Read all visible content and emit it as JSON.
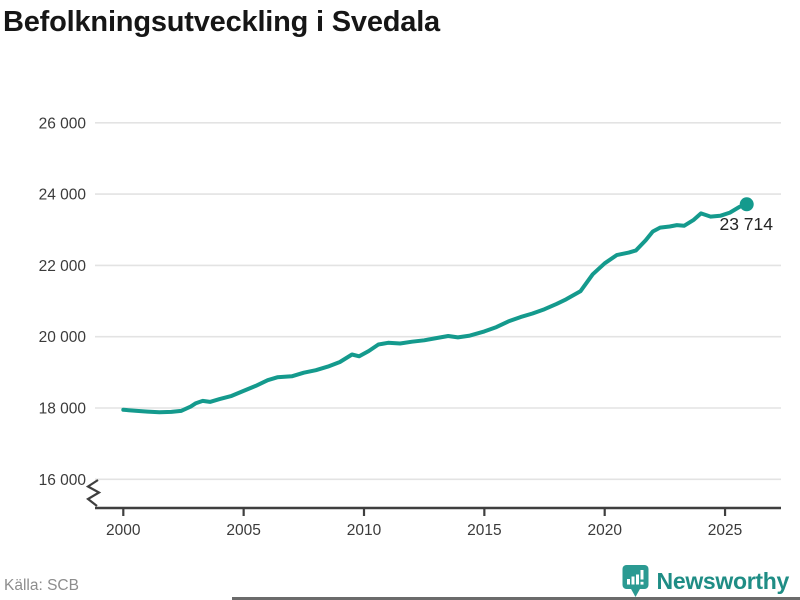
{
  "title": "Befolkningsutveckling i Svedala",
  "source": "Källa: SCB",
  "branding": {
    "name": "Newsworthy",
    "icon": "bar-chart-speech-bubble-icon"
  },
  "end_label": "23 714",
  "colors": {
    "line": "#149a8d",
    "dot": "#149a8d",
    "grid": "#e3e3e3",
    "axis": "#3f3f3f",
    "tick_text": "#3b3b3b",
    "title_text": "#161616",
    "source_text": "#8d8d8d",
    "label_text": "#252525",
    "brand_teal": "#1f8d85",
    "brand_icon_teal": "#2b9a92",
    "background": "#ffffff"
  },
  "chart_data": {
    "type": "line",
    "title": "Befolkningsutveckling i Svedala",
    "xlabel": "",
    "ylabel": "",
    "x_ticks": [
      2000,
      2005,
      2010,
      2015,
      2020,
      2025
    ],
    "y_ticks": [
      26000,
      24000,
      22000,
      20000,
      18000,
      16000
    ],
    "ylim": [
      16000,
      26000
    ],
    "xlim": [
      1998.8,
      2027.3
    ],
    "y_axis_break": true,
    "grid": "horizontal",
    "source": "SCB",
    "series": [
      {
        "name": "Befolkning",
        "points": [
          [
            2000.0,
            17950
          ],
          [
            2000.5,
            17925
          ],
          [
            2001.0,
            17900
          ],
          [
            2001.5,
            17880
          ],
          [
            2002.0,
            17890
          ],
          [
            2002.4,
            17920
          ],
          [
            2002.8,
            18040
          ],
          [
            2003.0,
            18130
          ],
          [
            2003.3,
            18200
          ],
          [
            2003.6,
            18170
          ],
          [
            2004.0,
            18250
          ],
          [
            2004.5,
            18340
          ],
          [
            2005.0,
            18480
          ],
          [
            2005.5,
            18620
          ],
          [
            2006.0,
            18780
          ],
          [
            2006.4,
            18860
          ],
          [
            2007.0,
            18890
          ],
          [
            2007.5,
            18990
          ],
          [
            2008.0,
            19060
          ],
          [
            2008.5,
            19160
          ],
          [
            2009.0,
            19290
          ],
          [
            2009.5,
            19500
          ],
          [
            2009.8,
            19450
          ],
          [
            2010.2,
            19600
          ],
          [
            2010.6,
            19780
          ],
          [
            2011.0,
            19830
          ],
          [
            2011.5,
            19810
          ],
          [
            2012.0,
            19860
          ],
          [
            2012.5,
            19900
          ],
          [
            2013.0,
            19960
          ],
          [
            2013.5,
            20020
          ],
          [
            2013.9,
            19980
          ],
          [
            2014.4,
            20030
          ],
          [
            2015.0,
            20150
          ],
          [
            2015.5,
            20270
          ],
          [
            2016.0,
            20430
          ],
          [
            2016.5,
            20550
          ],
          [
            2017.0,
            20650
          ],
          [
            2017.5,
            20770
          ],
          [
            2018.0,
            20920
          ],
          [
            2018.4,
            21050
          ],
          [
            2019.0,
            21280
          ],
          [
            2019.5,
            21750
          ],
          [
            2020.0,
            22060
          ],
          [
            2020.5,
            22290
          ],
          [
            2021.0,
            22360
          ],
          [
            2021.3,
            22420
          ],
          [
            2021.7,
            22700
          ],
          [
            2022.0,
            22950
          ],
          [
            2022.3,
            23060
          ],
          [
            2022.7,
            23090
          ],
          [
            2023.0,
            23130
          ],
          [
            2023.3,
            23110
          ],
          [
            2023.7,
            23280
          ],
          [
            2024.0,
            23460
          ],
          [
            2024.4,
            23370
          ],
          [
            2024.8,
            23390
          ],
          [
            2025.2,
            23480
          ],
          [
            2025.6,
            23640
          ],
          [
            2025.9,
            23714
          ]
        ]
      }
    ],
    "annotation": {
      "text": "23 714",
      "x": 2025.9,
      "y": 23714
    }
  }
}
